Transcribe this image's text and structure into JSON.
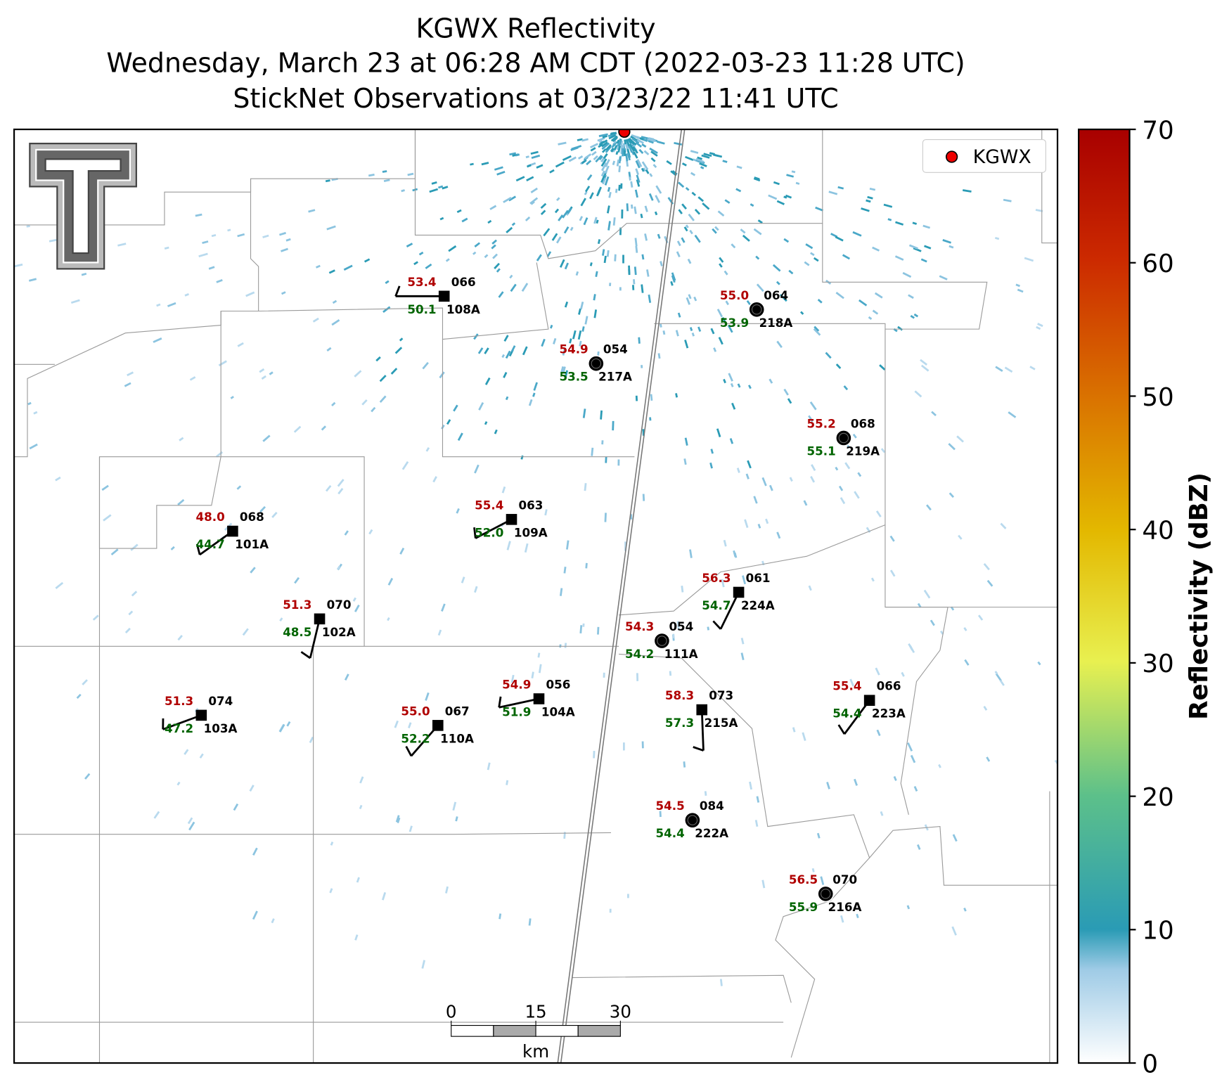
{
  "title": [
    "KGWX Reflectivity",
    "Wednesday, March 23 at 06:28 AM CDT (2022-03-23 11:28 UTC)",
    "StickNet Observations at 03/23/22 11:41 UTC"
  ],
  "legend": {
    "label": "KGWX"
  },
  "colorbar": {
    "label": "Reflectivity (dBZ)",
    "lim": [
      0,
      70
    ],
    "ticks": [
      0,
      10,
      20,
      30,
      40,
      50,
      60,
      70
    ]
  },
  "scale_bar": {
    "ticks": [
      0,
      15,
      30
    ],
    "unit": "km"
  },
  "stations": [
    {
      "id": "108A",
      "temperature": "53.4",
      "dewpoint": "50.1",
      "pressure": "066"
    },
    {
      "id": "218A",
      "temperature": "55.0",
      "dewpoint": "53.9",
      "pressure": "064"
    },
    {
      "id": "217A",
      "temperature": "54.9",
      "dewpoint": "53.5",
      "pressure": "054"
    },
    {
      "id": "219A",
      "temperature": "55.2",
      "dewpoint": "55.1",
      "pressure": "068"
    },
    {
      "id": "109A",
      "temperature": "55.4",
      "dewpoint": "52.0",
      "pressure": "063"
    },
    {
      "id": "101A",
      "temperature": "48.0",
      "dewpoint": "44.7",
      "pressure": "068"
    },
    {
      "id": "224A",
      "temperature": "56.3",
      "dewpoint": "54.7",
      "pressure": "061"
    },
    {
      "id": "102A",
      "temperature": "51.3",
      "dewpoint": "48.5",
      "pressure": "070"
    },
    {
      "id": "111A",
      "temperature": "54.3",
      "dewpoint": "54.2",
      "pressure": "054"
    },
    {
      "id": "104A",
      "temperature": "54.9",
      "dewpoint": "51.9",
      "pressure": "056"
    },
    {
      "id": "103A",
      "temperature": "51.3",
      "dewpoint": "47.2",
      "pressure": "074"
    },
    {
      "id": "110A",
      "temperature": "55.0",
      "dewpoint": "52.2",
      "pressure": "067"
    },
    {
      "id": "215A",
      "temperature": "58.3",
      "dewpoint": "57.3",
      "pressure": "073"
    },
    {
      "id": "223A",
      "temperature": "55.4",
      "dewpoint": "54.4",
      "pressure": "066"
    },
    {
      "id": "222A",
      "temperature": "54.5",
      "dewpoint": "54.4",
      "pressure": "084"
    },
    {
      "id": "216A",
      "temperature": "56.5",
      "dewpoint": "55.9",
      "pressure": "070"
    }
  ]
}
